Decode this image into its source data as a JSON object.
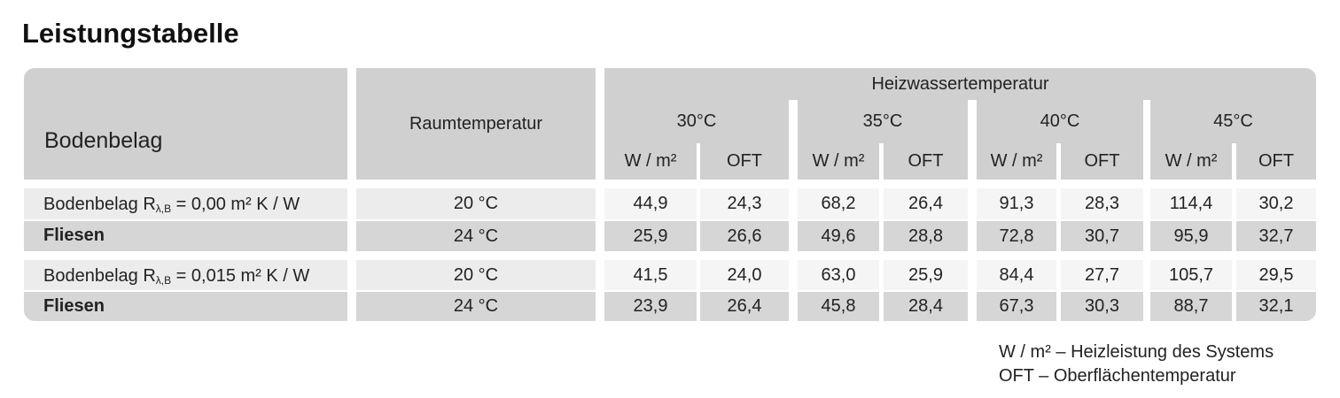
{
  "title": "Leistungstabelle",
  "table": {
    "header": {
      "col1": "Bodenbelag",
      "col2": "Raumtemperatur",
      "group": "Heizwassertemperatur",
      "temperatures": [
        "30°C",
        "35°C",
        "40°C",
        "45°C"
      ],
      "subheaders": [
        "W / m²",
        "OFT"
      ]
    },
    "groups": [
      {
        "label": {
          "prefix": "Bodenbelag R",
          "subscript": "λ,B",
          "suffix": " = 0,00 m² K / W"
        },
        "material": "Fliesen",
        "rows": [
          {
            "room": "20 °C",
            "values": [
              "44,9",
              "24,3",
              "68,2",
              "26,4",
              "91,3",
              "28,3",
              "114,4",
              "30,2"
            ]
          },
          {
            "room": "24 °C",
            "values": [
              "25,9",
              "26,6",
              "49,6",
              "28,8",
              "72,8",
              "30,7",
              "95,9",
              "32,7"
            ]
          }
        ]
      },
      {
        "label": {
          "prefix": "Bodenbelag R",
          "subscript": "λ,B",
          "suffix": " = 0,015 m² K / W"
        },
        "material": "Fliesen",
        "rows": [
          {
            "room": "20 °C",
            "values": [
              "41,5",
              "24,0",
              "63,0",
              "25,9",
              "84,4",
              "27,7",
              "105,7",
              "29,5"
            ]
          },
          {
            "room": "24 °C",
            "values": [
              "23,9",
              "26,4",
              "45,8",
              "28,4",
              "67,3",
              "30,3",
              "88,7",
              "32,1"
            ]
          }
        ]
      }
    ]
  },
  "legend": [
    "W / m² – Heizleistung des Systems",
    "OFT – Oberflächentemperatur"
  ]
}
